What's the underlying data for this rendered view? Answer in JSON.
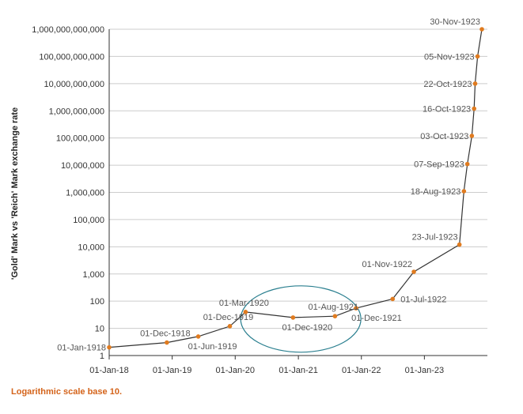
{
  "chart_data": {
    "type": "line",
    "scale": "log10",
    "ylabel": "'Gold' Mark vs 'Reich' Mark exchange rate",
    "xlabel": "",
    "ylim": [
      1,
      1000000000000
    ],
    "xlim": [
      "1918-01-01",
      "1924-01-01"
    ],
    "y_ticks": [
      {
        "value": 1,
        "label": "1"
      },
      {
        "value": 10,
        "label": "10"
      },
      {
        "value": 100,
        "label": "100"
      },
      {
        "value": 1000,
        "label": "1,000"
      },
      {
        "value": 10000,
        "label": "10,000"
      },
      {
        "value": 100000,
        "label": "100,000"
      },
      {
        "value": 1000000,
        "label": "1,000,000"
      },
      {
        "value": 10000000,
        "label": "10,000,000"
      },
      {
        "value": 100000000,
        "label": "100,000,000"
      },
      {
        "value": 1000000000,
        "label": "1,000,000,000"
      },
      {
        "value": 10000000000,
        "label": "10,000,000,000"
      },
      {
        "value": 100000000000,
        "label": "100,000,000,000"
      },
      {
        "value": 1000000000000,
        "label": "1,000,000,000,000"
      }
    ],
    "x_ticks": [
      {
        "date": "1918-01-01",
        "label": "01-Jan-18"
      },
      {
        "date": "1919-01-01",
        "label": "01-Jan-19"
      },
      {
        "date": "1920-01-01",
        "label": "01-Jan-20"
      },
      {
        "date": "1921-01-01",
        "label": "01-Jan-21"
      },
      {
        "date": "1922-01-01",
        "label": "01-Jan-22"
      },
      {
        "date": "1923-01-01",
        "label": "01-Jan-23"
      }
    ],
    "series": [
      {
        "name": "exchange-rate",
        "color": "#e07b1f",
        "line_color": "#333333",
        "points": [
          {
            "date": "1918-01-01",
            "label": "01-Jan-1918",
            "value": 2,
            "label_pos": "left"
          },
          {
            "date": "1918-12-01",
            "label": "01-Dec-1918",
            "value": 3,
            "label_pos": "above"
          },
          {
            "date": "1919-06-01",
            "label": "01-Jun-1919",
            "value": 5,
            "label_pos": "below"
          },
          {
            "date": "1919-12-01",
            "label": "01-Dec-1919",
            "value": 12,
            "label_pos": "above"
          },
          {
            "date": "1920-03-01",
            "label": "01-Mar-1920",
            "value": 40,
            "label_pos": "above"
          },
          {
            "date": "1920-12-01",
            "label": "01-Dec-1920",
            "value": 25,
            "label_pos": "below"
          },
          {
            "date": "1921-08-01",
            "label": "01-Aug-1921",
            "value": 28,
            "label_pos": "above"
          },
          {
            "date": "1921-12-01",
            "label": "01-Dec-1921",
            "value": 55,
            "label_pos": "below-right"
          },
          {
            "date": "1922-07-01",
            "label": "01-Jul-1922",
            "value": 120,
            "label_pos": "right"
          },
          {
            "date": "1922-11-01",
            "label": "01-Nov-1922",
            "value": 1200,
            "label_pos": "above-left"
          },
          {
            "date": "1923-07-23",
            "label": "23-Jul-1923",
            "value": 12000,
            "label_pos": "above-left"
          },
          {
            "date": "1923-08-18",
            "label": "18-Aug-1923",
            "value": 1100000,
            "label_pos": "left"
          },
          {
            "date": "1923-09-07",
            "label": "07-Sep-1923",
            "value": 11000000,
            "label_pos": "left"
          },
          {
            "date": "1923-10-03",
            "label": "03-Oct-1923",
            "value": 120000000,
            "label_pos": "left"
          },
          {
            "date": "1923-10-16",
            "label": "16-Oct-1923",
            "value": 1200000000,
            "label_pos": "left"
          },
          {
            "date": "1923-10-22",
            "label": "22-Oct-1923",
            "value": 10000000000,
            "label_pos": "left"
          },
          {
            "date": "1923-11-05",
            "label": "05-Nov-1923",
            "value": 100000000000,
            "label_pos": "left"
          },
          {
            "date": "1923-11-30",
            "label": "30-Nov-1923",
            "value": 1000000000000,
            "label_pos": "above-left"
          }
        ]
      }
    ],
    "annotations": [
      {
        "type": "ellipse",
        "center_date": "1921-01-15",
        "center_value": 22,
        "note": "highlight of 1920-1921 stabilisation",
        "color": "#2a7f8f"
      }
    ],
    "footnote": "Logarithmic scale base 10."
  },
  "colors": {
    "marker": "#e07b1f",
    "line": "#333333",
    "grid": "#cccccc",
    "ellipse": "#2a7f8f",
    "footnote": "#d4631a"
  }
}
